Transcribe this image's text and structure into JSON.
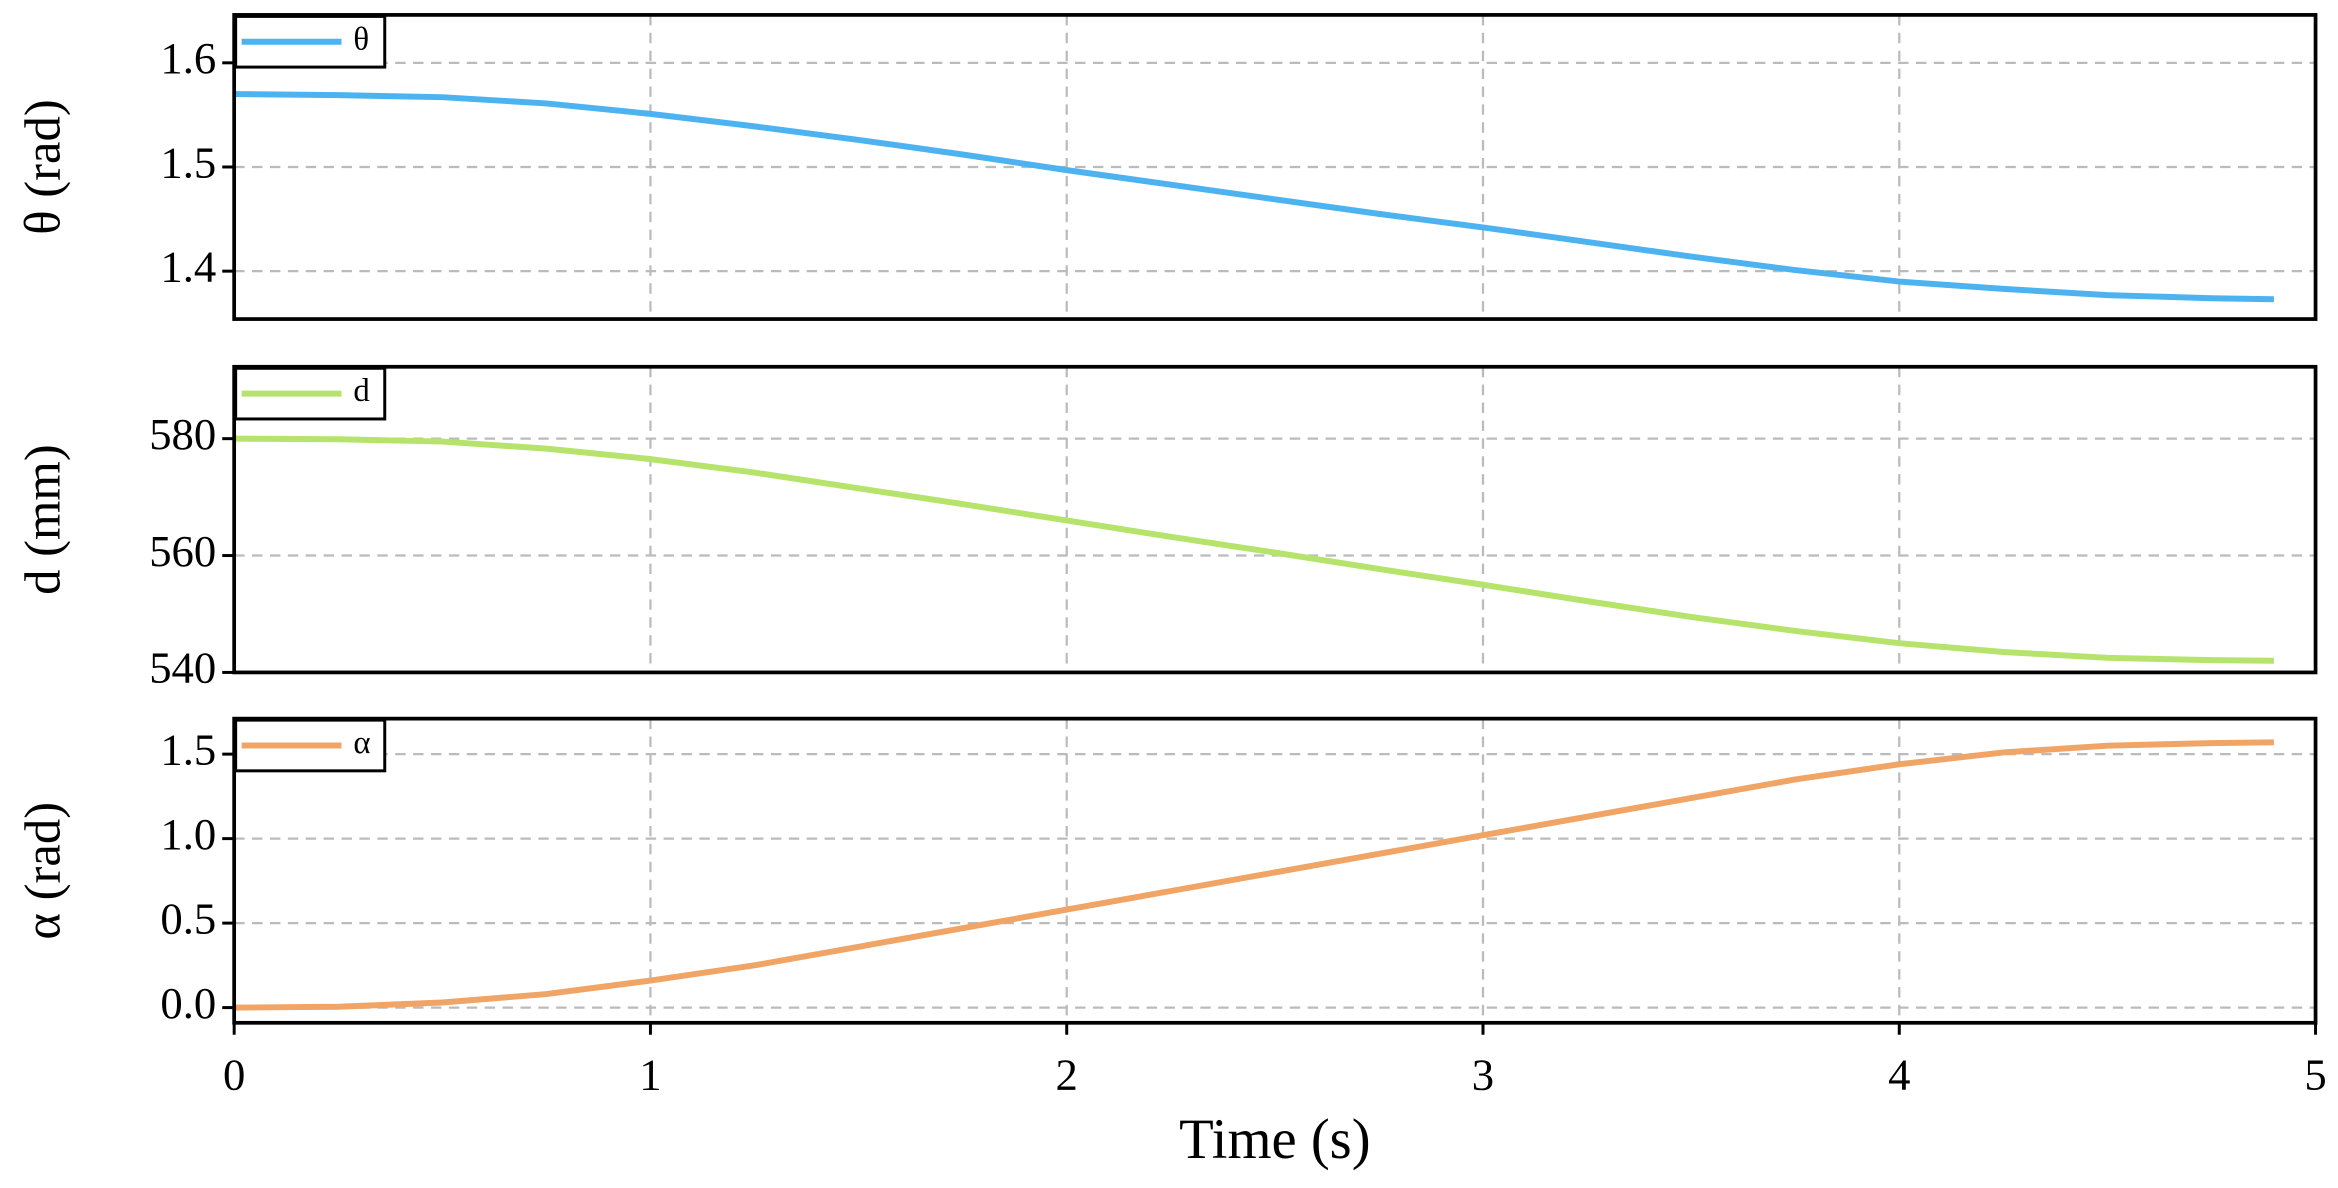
{
  "chart_data": [
    {
      "type": "line",
      "ylabel": "θ (rad)",
      "x": [
        0,
        0.25,
        0.5,
        0.75,
        1,
        1.25,
        1.5,
        1.75,
        2,
        2.25,
        2.5,
        2.75,
        3,
        3.25,
        3.5,
        3.75,
        4,
        4.25,
        4.5,
        4.75,
        4.9
      ],
      "series": [
        {
          "name": "θ",
          "color": "#4db3f0",
          "values": [
            1.57,
            1.569,
            1.567,
            1.561,
            1.551,
            1.539,
            1.526,
            1.512,
            1.497,
            1.483,
            1.469,
            1.455,
            1.442,
            1.428,
            1.414,
            1.401,
            1.39,
            1.383,
            1.377,
            1.374,
            1.373
          ]
        }
      ],
      "xlim": [
        0,
        5
      ],
      "xticks": [
        0,
        1,
        2,
        3,
        4,
        5
      ],
      "ylim": [
        1.354,
        1.646
      ],
      "yticks": [
        1.4,
        1.5,
        1.6
      ],
      "grid": true,
      "legend": "upper left"
    },
    {
      "type": "line",
      "ylabel": "d (mm)",
      "x": [
        0,
        0.25,
        0.5,
        0.75,
        1,
        1.25,
        1.5,
        1.75,
        2,
        2.25,
        2.5,
        2.75,
        3,
        3.25,
        3.5,
        3.75,
        4,
        4.25,
        4.5,
        4.75,
        4.9
      ],
      "series": [
        {
          "name": "d",
          "color": "#b5e36b",
          "values": [
            580,
            579.9,
            579.5,
            578.3,
            576.5,
            574.2,
            571.5,
            568.8,
            566,
            563.2,
            560.5,
            557.7,
            555,
            552.2,
            549.5,
            547.1,
            545,
            543.5,
            542.5,
            542.1,
            542
          ]
        }
      ],
      "xlim": [
        0,
        5
      ],
      "xticks": [
        0,
        1,
        2,
        3,
        4,
        5
      ],
      "ylim": [
        540,
        592.3
      ],
      "yticks": [
        540,
        560,
        580
      ],
      "grid": true,
      "legend": "upper left"
    },
    {
      "type": "line",
      "ylabel": "α (rad)",
      "xlabel": "Time (s)",
      "x": [
        0,
        0.25,
        0.5,
        0.75,
        1,
        1.25,
        1.5,
        1.75,
        2,
        2.25,
        2.5,
        2.75,
        3,
        3.25,
        3.5,
        3.75,
        4,
        4.25,
        4.5,
        4.75,
        4.9
      ],
      "series": [
        {
          "name": "α",
          "color": "#f0a466",
          "values": [
            0,
            0.005,
            0.03,
            0.08,
            0.16,
            0.25,
            0.36,
            0.47,
            0.58,
            0.69,
            0.8,
            0.91,
            1.02,
            1.13,
            1.24,
            1.35,
            1.44,
            1.51,
            1.55,
            1.565,
            1.57
          ]
        }
      ],
      "xlim": [
        0,
        5
      ],
      "xticks": [
        0,
        1,
        2,
        3,
        4,
        5
      ],
      "ylim": [
        -0.09,
        1.71
      ],
      "yticks": [
        {
          "value": 0,
          "label": "0.0"
        },
        0.5,
        {
          "value": 1,
          "label": "1.0"
        },
        1.5
      ],
      "grid": true,
      "legend": "upper left"
    }
  ]
}
